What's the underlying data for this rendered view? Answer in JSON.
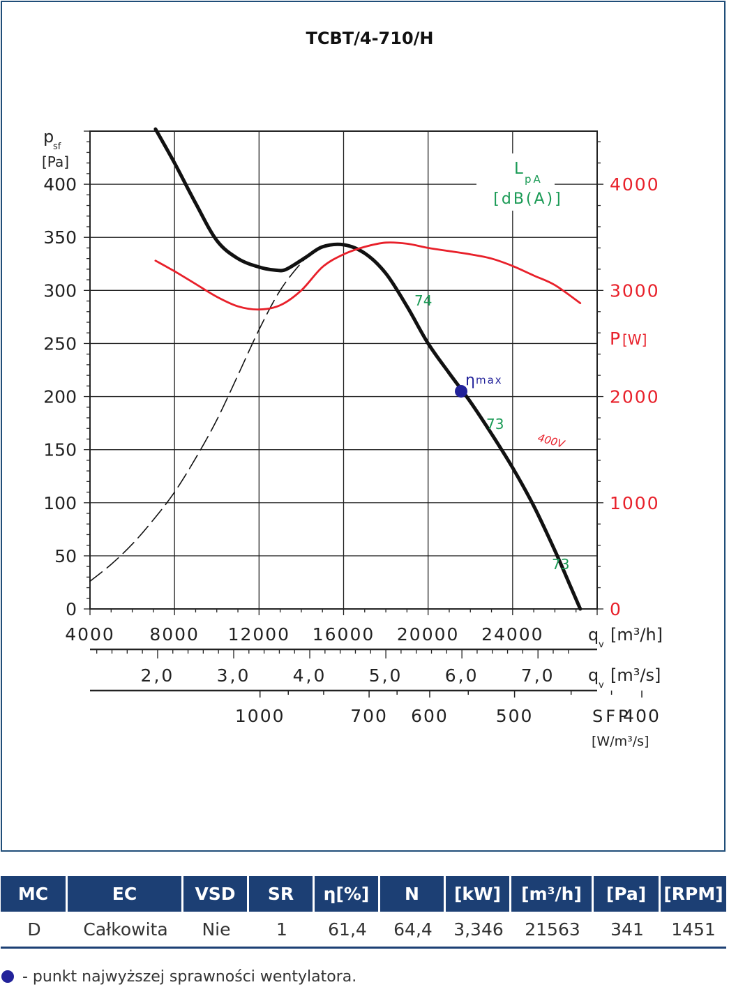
{
  "chart_data": {
    "type": "line",
    "title": "TCBT/4-710/H",
    "ylabel_main": "p",
    "ylabel_sub": "sf",
    "ylabel_unit": "[Pa]",
    "ylim": [
      0,
      450
    ],
    "y_ticks": [
      "0",
      "50",
      "100",
      "150",
      "200",
      "250",
      "300",
      "350",
      "400"
    ],
    "y2_label_main": "P",
    "y2_label_unit": "[W]",
    "y2_ticks": [
      "0",
      "1000",
      "2000",
      "3000",
      "4000"
    ],
    "xlabel_main": "q",
    "xlabel_sub": "v",
    "xlabel_unit": "[m³/h]",
    "xlim": [
      4000,
      28000
    ],
    "x_ticks": [
      "4000",
      "8000",
      "12000",
      "16000",
      "20000",
      "24000"
    ],
    "x2_label_unit": "[m³/s]",
    "x2_ticks": [
      "2,0",
      "3,0",
      "4,0",
      "5,0",
      "6,0",
      "7,0"
    ],
    "sfp_label": "SFP",
    "sfp_unit": "[W/m³/s]",
    "sfp_ticks": [
      "1000",
      "700",
      "600",
      "500",
      "400"
    ],
    "noise_label_main": "L",
    "noise_label_sub": "pA",
    "noise_label_unit": "[dB(A)]",
    "noise_values": [
      "74",
      "73",
      "73"
    ],
    "eta_label": "η",
    "eta_sub": "max",
    "power_curve_label": "400V",
    "grid": true,
    "series": [
      {
        "color": "#111111",
        "x": [
          7100,
          8000,
          9000,
          10000,
          11000,
          12000,
          12800,
          13300,
          14200,
          15000,
          16000,
          17000,
          18000,
          19000,
          20000,
          21000,
          22000,
          23000,
          24000,
          25000,
          26000,
          26700,
          27200
        ],
        "y": [
          452,
          420,
          382,
          347,
          330,
          322,
          319,
          320,
          331,
          341,
          343,
          335,
          316,
          285,
          250,
          222,
          195,
          165,
          133,
          97,
          55,
          23,
          0
        ]
      },
      {
        "color": "#111111",
        "dashed": true,
        "x": [
          4000,
          5000,
          6000,
          7000,
          8000,
          9000,
          10000,
          11000,
          12000,
          13000,
          14000,
          14500
        ],
        "y": [
          26,
          42,
          61,
          84,
          110,
          142,
          178,
          220,
          263,
          300,
          326,
          335
        ]
      },
      {
        "color": "#e8202a",
        "x": [
          7100,
          8000,
          9000,
          10000,
          11000,
          12000,
          13000,
          14000,
          15000,
          16000,
          17000,
          18000,
          19000,
          20000,
          21000,
          22000,
          23000,
          24000,
          25000,
          26000,
          27200
        ],
        "y": [
          3280,
          3180,
          3060,
          2940,
          2850,
          2820,
          2860,
          3000,
          3220,
          3340,
          3410,
          3450,
          3440,
          3400,
          3370,
          3340,
          3300,
          3230,
          3140,
          3050,
          2880
        ]
      }
    ],
    "eta_point": {
      "x": 21563,
      "y": 205
    }
  },
  "table": {
    "headers": [
      "MC",
      "EC",
      "VSD",
      "SR",
      "η[%]",
      "N",
      "[kW]",
      "[m³/h]",
      "[Pa]",
      "[RPM]"
    ],
    "row": [
      "D",
      "Całkowita",
      "Nie",
      "1",
      "61,4",
      "64,4",
      "3,346",
      "21563",
      "341",
      "1451"
    ]
  },
  "footnote": "- punkt najwyższej sprawności wentylatora.",
  "colors": {
    "accent": "#1c3f74",
    "frame": "#1f4d78",
    "noise": "#1a9a55",
    "power": "#e8202a",
    "eta_dot": "#22229a"
  }
}
